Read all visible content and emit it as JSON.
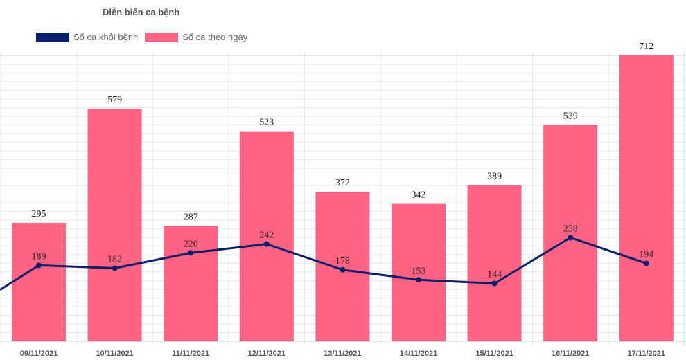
{
  "chart_data": {
    "type": "bar",
    "title": "Diễn biến ca bệnh",
    "categories": [
      "09/11/2021",
      "10/11/2021",
      "11/11/2021",
      "12/11/2021",
      "13/11/2021",
      "14/11/2021",
      "15/11/2021",
      "16/11/2021",
      "17/11/2021"
    ],
    "series": [
      {
        "name": "Số ca khỏi bệnh",
        "type": "line",
        "color": "#0a1f6b",
        "values": [
          189,
          182,
          220,
          242,
          178,
          153,
          144,
          258,
          194
        ]
      },
      {
        "name": "Số ca theo ngày",
        "type": "bar",
        "color": "#ff6384",
        "values": [
          295,
          579,
          287,
          523,
          372,
          342,
          389,
          539,
          712
        ]
      }
    ],
    "ylim": [
      0,
      750
    ],
    "grid": true,
    "legend": "top-left",
    "xlabel": "",
    "ylabel": ""
  }
}
